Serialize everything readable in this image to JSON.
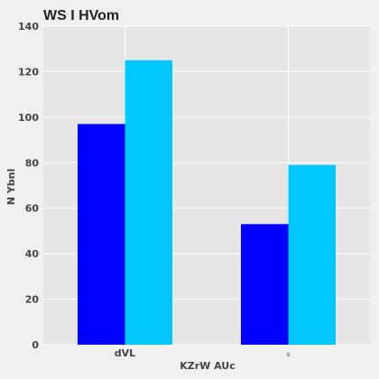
{
  "chart_data": {
    "type": "bar",
    "title": "WS I HVom",
    "xlabel": "KZrW AUc",
    "ylabel": "N Ybnl",
    "categories": [
      "dVL",
      "s"
    ],
    "series": [
      {
        "values": [
          97,
          53
        ]
      },
      {
        "values": [
          125,
          79
        ]
      }
    ],
    "ylim": [
      0,
      140
    ],
    "yticks": [
      0,
      20,
      40,
      60,
      80,
      100,
      120,
      140
    ],
    "grid": true,
    "colors": {
      "series": [
        "#0000ff",
        "#00c8ff"
      ],
      "plot_background": "#e6e6e6",
      "figure_background": "#f0f0f0",
      "grid": "#ffffff"
    }
  }
}
